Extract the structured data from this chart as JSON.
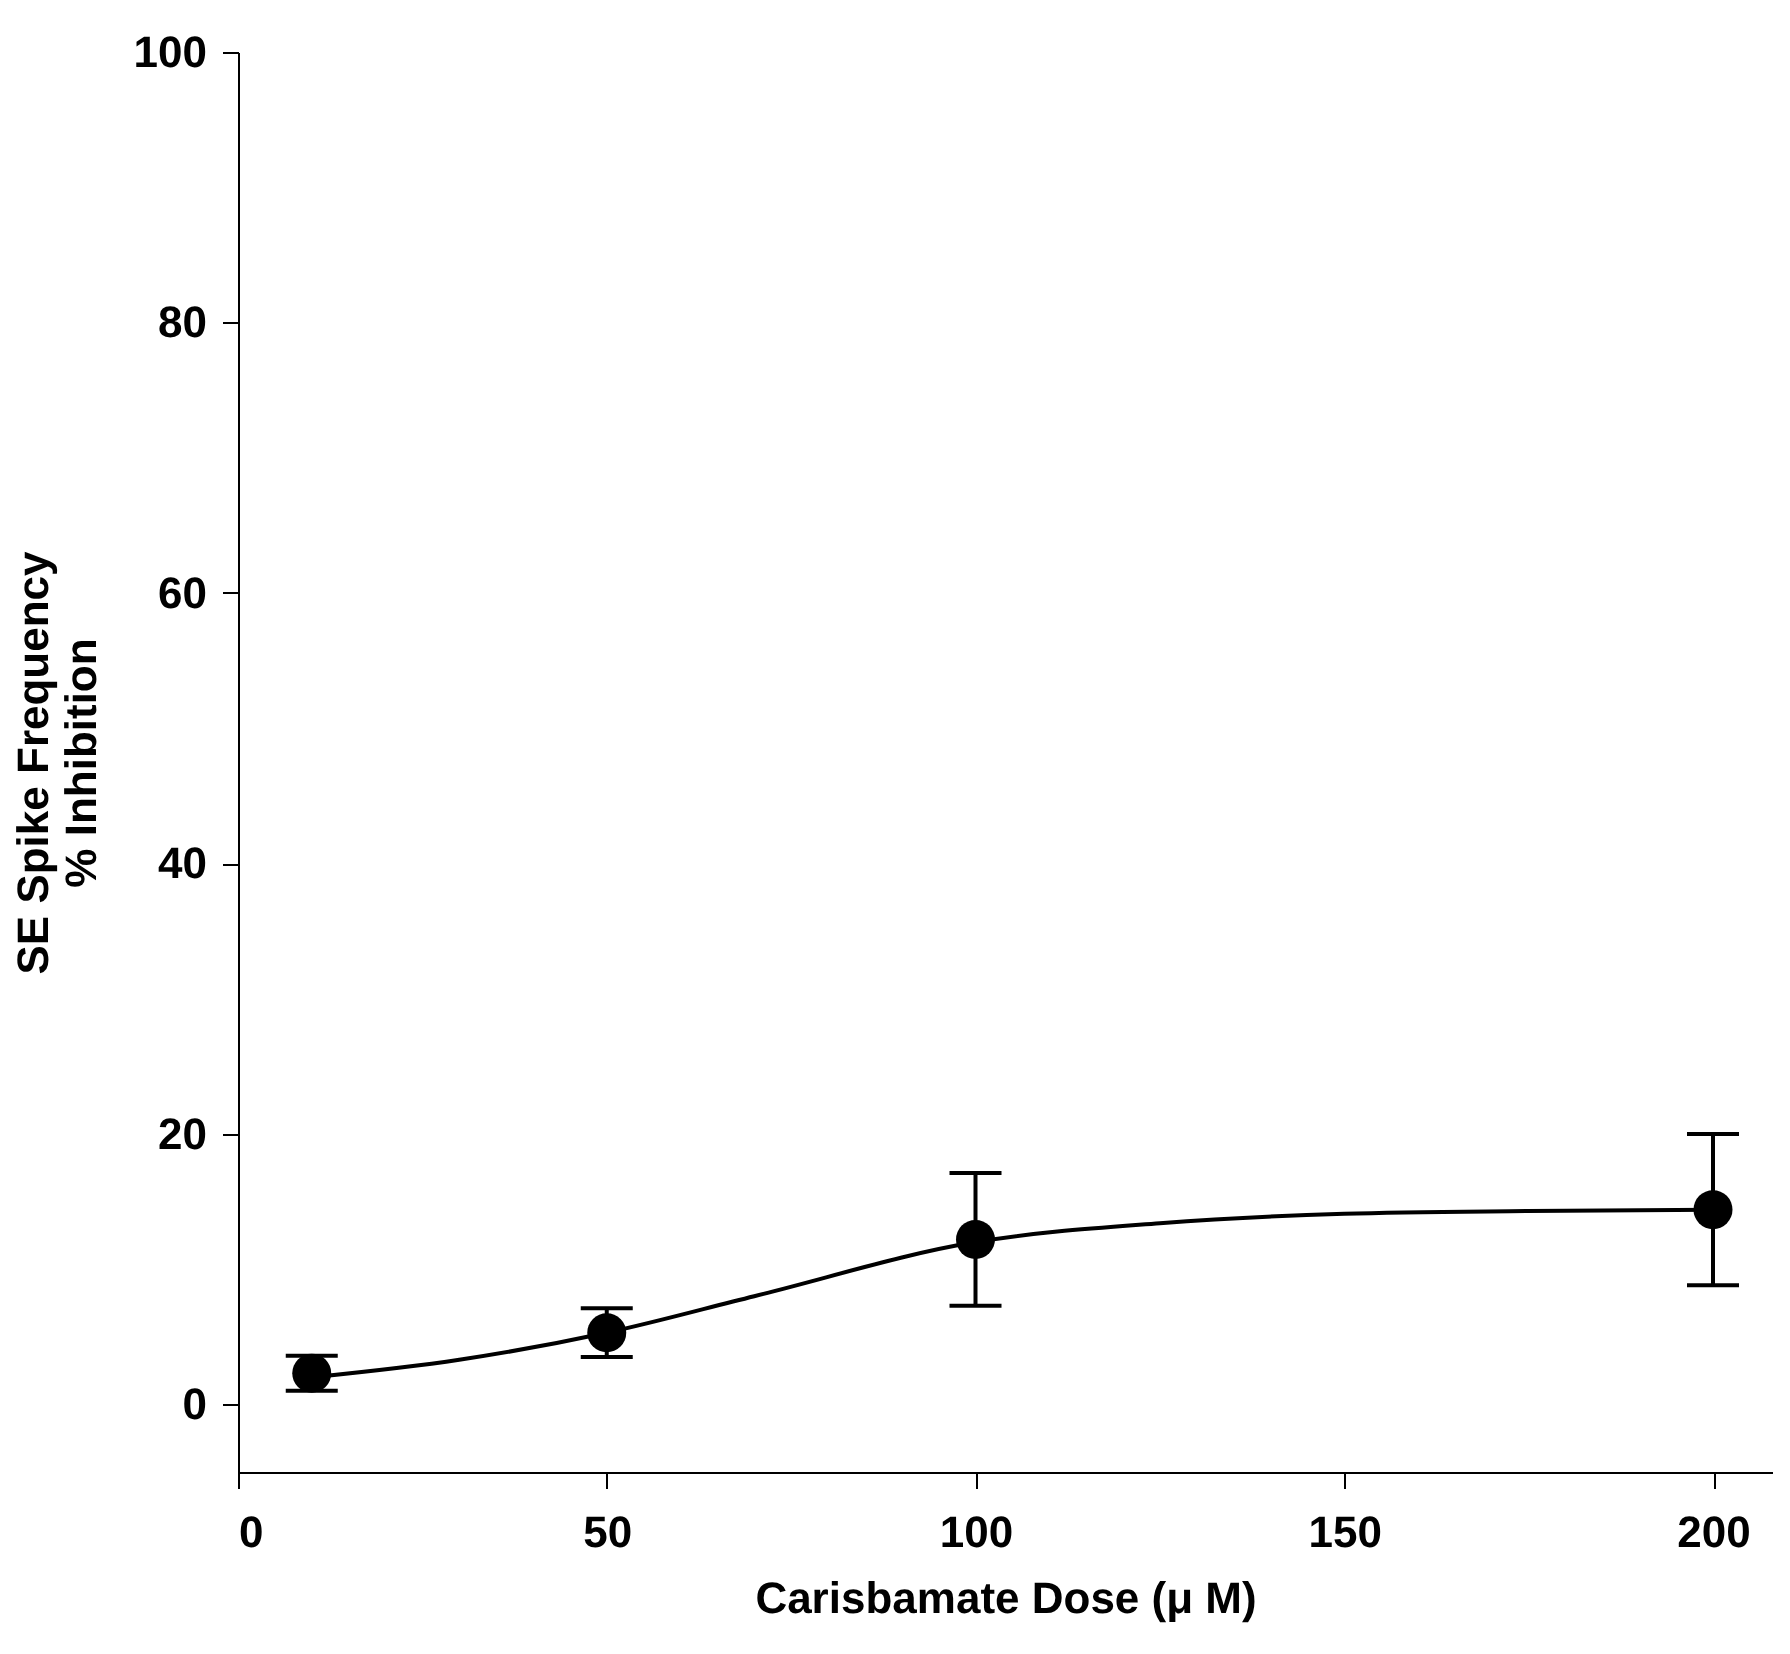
{
  "chart_data": {
    "type": "scatter",
    "xlabel": "Carisbamate Dose (μ M)",
    "ylabel": "SE Spike Frequency\n% Inhibition",
    "x": [
      10,
      50,
      100,
      200
    ],
    "xlim": [
      0,
      208
    ],
    "ylim": [
      -5,
      100
    ],
    "xticks": [
      0,
      50,
      100,
      150,
      200
    ],
    "yticks": [
      0,
      20,
      40,
      60,
      80,
      100
    ],
    "grid": false,
    "series": [
      {
        "type": "line",
        "color": "#000000",
        "marker": "none",
        "line_style": "solid",
        "x": [
          10,
          30,
          50,
          70,
          100,
          125,
          150,
          175,
          200
        ],
        "values": [
          2.0,
          3.3,
          5.3,
          8.0,
          12.0,
          13.4,
          14.1,
          14.3,
          14.4
        ]
      },
      {
        "color": "#000000",
        "marker": "circle",
        "values": [
          2.3,
          5.3,
          12.2,
          14.4
        ],
        "errors": [
          1.3,
          1.8,
          4.9,
          5.6
        ]
      }
    ]
  }
}
